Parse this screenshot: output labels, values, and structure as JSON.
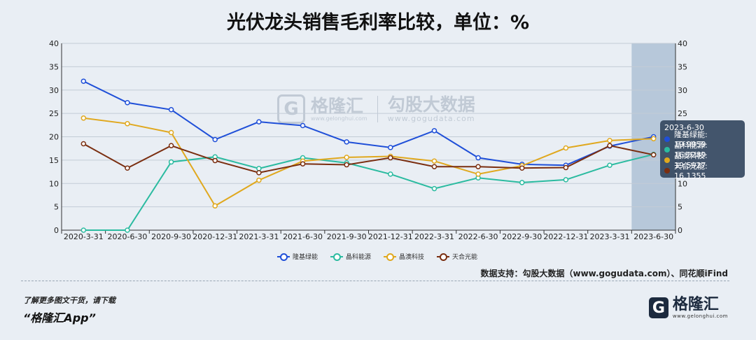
{
  "title": "光伏龙头销售毛利率比较，单位：%",
  "source": "数据支持：勾股大数据（www.gogudata.com）、同花顺iFind",
  "promo": {
    "line1": "了解更多图文干货，请下载",
    "line2": "“格隆汇App”"
  },
  "logo": {
    "badge": "G",
    "name": "格隆汇",
    "url": "www.gelonghui.com"
  },
  "watermark": {
    "badge": "G",
    "name": "格隆汇",
    "url": "www.gelonghui.com",
    "name2": "勾股大数据",
    "url2": "www.gogudata.com"
  },
  "tooltip": {
    "title": "2023-6-30",
    "rows": [
      {
        "text": "隆基绿能: 19.9959",
        "color": "#1f4fd8"
      },
      {
        "text": "晶科能源: 16.2289",
        "color": "#2bbba0"
      },
      {
        "text": "晶澳科技: 19.5927",
        "color": "#e0a81e"
      },
      {
        "text": "天合光能: 16.1355",
        "color": "#7a2e10"
      }
    ]
  },
  "chart_data": {
    "type": "line",
    "categories": [
      "2020-3-31",
      "2020-6-30",
      "2020-9-30",
      "2020-12-31",
      "2021-3-31",
      "2021-6-30",
      "2021-9-30",
      "2021-12-31",
      "2022-3-31",
      "2022-6-30",
      "2022-9-30",
      "2022-12-31",
      "2023-3-31",
      "2023-6-30"
    ],
    "ylim": [
      0,
      40
    ],
    "yticks": [
      0,
      5,
      10,
      15,
      20,
      25,
      30,
      35,
      40
    ],
    "highlight_category": "2023-6-30",
    "grid": true,
    "legend_position": "bottom",
    "series": [
      {
        "name": "隆基绿能",
        "color": "#1f4fd8",
        "values": [
          31.9,
          27.3,
          25.8,
          19.4,
          23.2,
          22.4,
          18.9,
          17.7,
          21.3,
          15.5,
          14.1,
          13.9,
          18.0,
          19.9959
        ]
      },
      {
        "name": "晶科能源",
        "color": "#2bbba0",
        "values": [
          0.0,
          0.0,
          14.6,
          15.7,
          13.2,
          15.5,
          14.4,
          12.0,
          8.9,
          11.2,
          10.2,
          10.8,
          13.9,
          16.2289
        ]
      },
      {
        "name": "晶澳科技",
        "color": "#e0a81e",
        "values": [
          24.0,
          22.8,
          20.9,
          5.2,
          10.7,
          14.8,
          15.6,
          15.8,
          14.8,
          12.0,
          13.8,
          17.6,
          19.2,
          19.5927
        ]
      },
      {
        "name": "天合光能",
        "color": "#7a2e10",
        "values": [
          18.5,
          13.3,
          18.1,
          14.9,
          12.3,
          14.2,
          14.0,
          15.5,
          13.6,
          13.6,
          13.3,
          13.4,
          18.1,
          16.1355
        ]
      }
    ]
  }
}
